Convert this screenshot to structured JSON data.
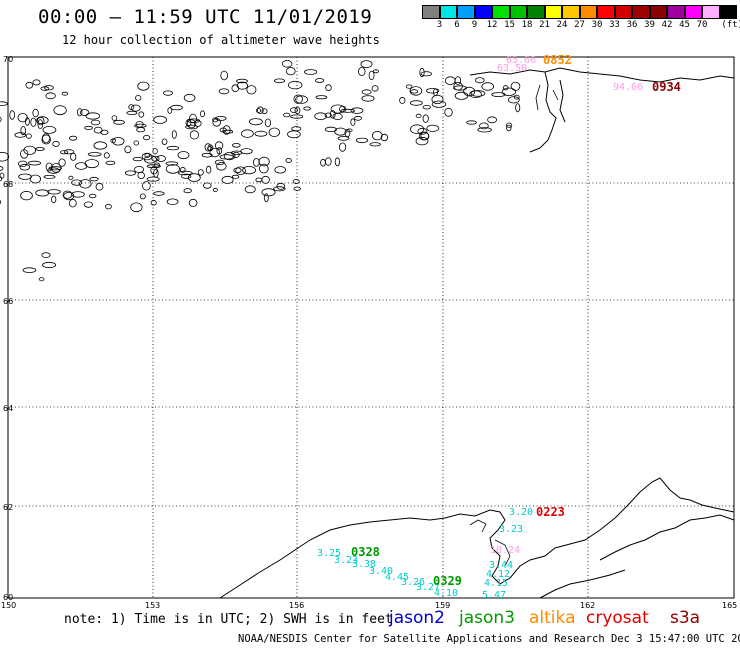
{
  "header": {
    "title": "00:00 – 11:59 UTC 11/01/2019",
    "subtitle": "12 hour collection of altimeter wave heights"
  },
  "color_scale": {
    "colors": [
      "#808080",
      "#00e5e5",
      "#00a0ff",
      "#0000ff",
      "#00e000",
      "#00c000",
      "#008000",
      "#ffff00",
      "#ffc800",
      "#ff8c00",
      "#ff0000",
      "#d20000",
      "#a00000",
      "#8b0000",
      "#a000a0",
      "#ff00ff",
      "#ffb0ff",
      "#000000"
    ],
    "labels": [
      "3",
      "6",
      "9",
      "12",
      "15",
      "18",
      "21",
      "24",
      "27",
      "30",
      "33",
      "36",
      "39",
      "42",
      "45",
      "70",
      "(ft)"
    ]
  },
  "axes": {
    "lon_labels": [
      "150",
      "153",
      "156",
      "159",
      "162",
      "165"
    ],
    "lat_labels": [
      "70",
      "68",
      "66",
      "64",
      "62",
      "60"
    ]
  },
  "tracks": {
    "top_cryosat": {
      "time": "0852",
      "values": [
        "65.66",
        "63.50"
      ],
      "time_color": "#ff8c00",
      "value_color": "#ff99e6"
    },
    "top_s3a": {
      "time": "0934",
      "values": [
        "94.66"
      ],
      "time_color": "#8b0000",
      "value_color": "#ff99e6"
    },
    "bottom_cryosat": {
      "time": "0223",
      "values": [
        "3.20",
        "3.23"
      ],
      "time_color": "#e00000",
      "value_color": "#00cccc"
    },
    "bottom_jason3_a": {
      "time": "0328",
      "values": [
        "3.25",
        "3.23",
        "3.38",
        "3.40",
        "4.45",
        "3.26",
        "3.27"
      ],
      "time_color": "#009900",
      "value_color": "#00cccc"
    },
    "bottom_jason3_b": {
      "time": "0329",
      "values": [
        "4.10"
      ],
      "time_color": "#009900",
      "value_color": "#00cccc"
    },
    "bottom_mixed": {
      "values": [
        "10.24",
        "3.44",
        "4.12",
        "4.15",
        "5.47"
      ],
      "value_color": "#00cccc",
      "pink_value_color": "#ff99e6"
    }
  },
  "footer": {
    "note": "note: 1) Time is in UTC; 2) SWH is in feet",
    "legend": [
      {
        "label": "jason2",
        "color": "#0000cc"
      },
      {
        "label": "jason3",
        "color": "#009900"
      },
      {
        "label": "altika",
        "color": "#ff8c00"
      },
      {
        "label": "cryosat",
        "color": "#e00000"
      },
      {
        "label": "s3a",
        "color": "#8b0000"
      }
    ],
    "credit": "NOAA/NESDIS Center for Satellite Applications and Research   Dec  3 15:47:00 UTC 2019"
  }
}
